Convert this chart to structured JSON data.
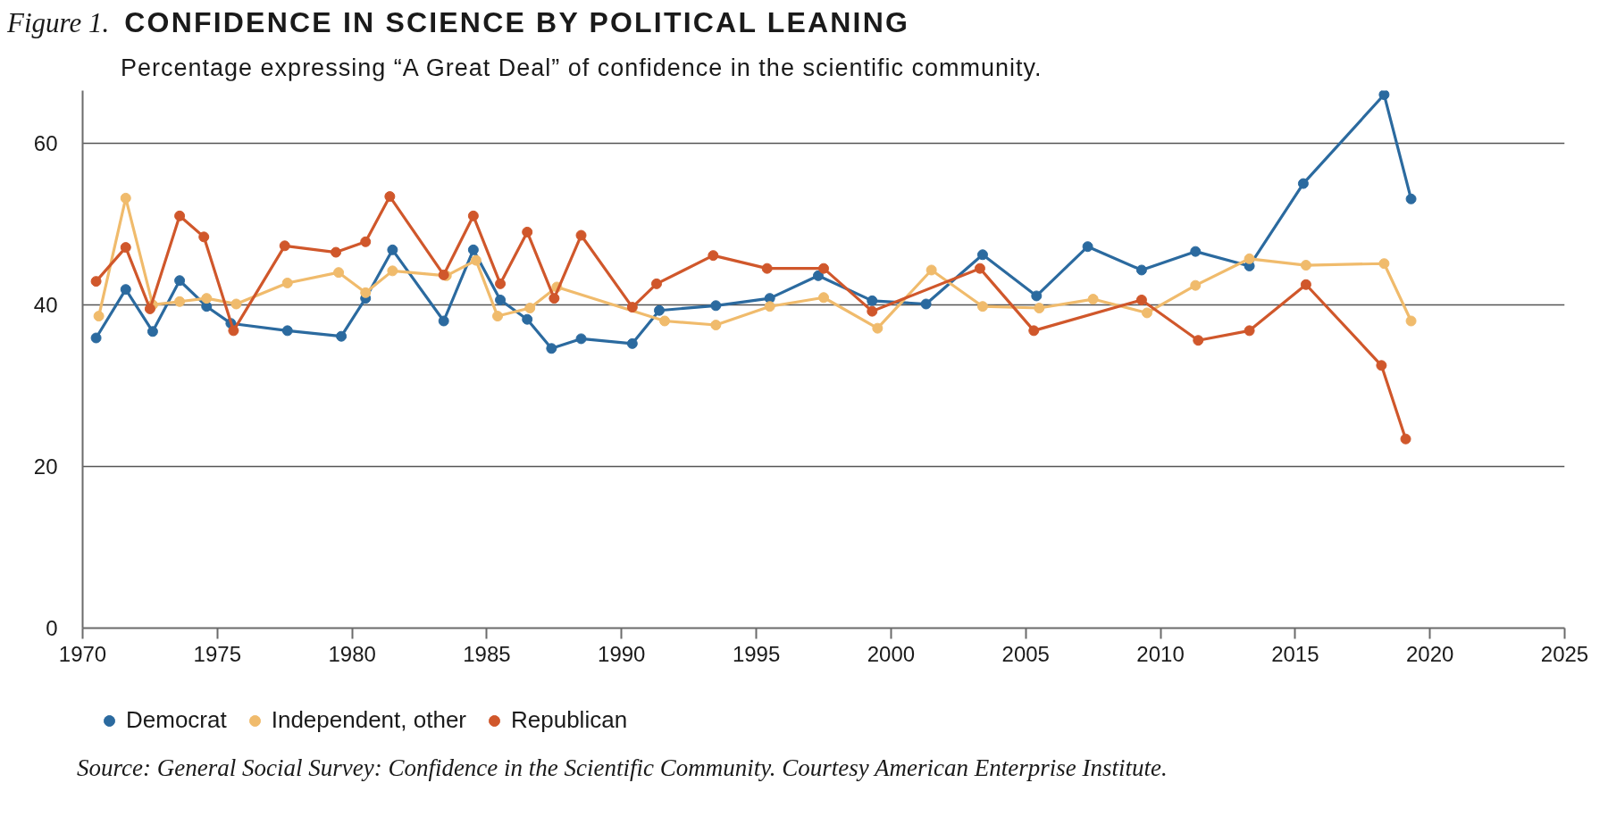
{
  "chart_data": {
    "type": "line",
    "title": "CONFIDENCE IN SCIENCE BY POLITICAL LEANING",
    "subtitle": "Percentage expressing “A Great Deal” of confidence in the scientific community.",
    "annotations": [
      "Figure 1.",
      "Source: General Social Survey: Confidence in the Scientific Community. Courtesy American Enterprise Institute."
    ],
    "xlim": [
      1970,
      2025
    ],
    "xticks": [
      1970,
      1975,
      1980,
      1985,
      1990,
      1995,
      2000,
      2005,
      2010,
      2015,
      2020,
      2025
    ],
    "ylim": [
      0,
      66.5
    ],
    "yticks": [
      0,
      20,
      40,
      60
    ],
    "grid": "y",
    "legend": "bottom",
    "marker": "circle",
    "series": [
      {
        "name": "Democrat",
        "color": "#2b6a9f",
        "x": [
          1970.5,
          1971.6,
          1972.6,
          1973.6,
          1974.6,
          1975.5,
          1977.6,
          1979.6,
          1980.5,
          1981.5,
          1983.4,
          1984.5,
          1985.5,
          1986.5,
          1987.4,
          1988.5,
          1990.4,
          1991.4,
          1993.5,
          1995.5,
          1997.3,
          1999.3,
          2001.3,
          2003.4,
          2005.4,
          2007.3,
          2009.3,
          2011.3,
          2013.3,
          2015.3,
          2018.3,
          2019.3
        ],
        "values": [
          35.9,
          41.9,
          36.7,
          43.0,
          39.8,
          37.7,
          36.8,
          36.1,
          40.8,
          46.8,
          38.0,
          46.8,
          40.6,
          38.2,
          34.6,
          35.8,
          35.2,
          39.3,
          39.9,
          40.8,
          43.6,
          40.5,
          40.1,
          46.2,
          41.1,
          47.2,
          44.3,
          46.6,
          44.8,
          55.0,
          66.0,
          53.1
        ]
      },
      {
        "name": "Independent, other",
        "color": "#f0bb6c",
        "x": [
          1970.6,
          1971.6,
          1972.6,
          1973.6,
          1974.6,
          1975.7,
          1977.6,
          1979.5,
          1980.5,
          1981.5,
          1983.5,
          1984.6,
          1985.4,
          1986.6,
          1987.6,
          1991.6,
          1993.5,
          1995.5,
          1997.5,
          1999.5,
          2001.5,
          2003.4,
          2005.5,
          2007.5,
          2009.5,
          2011.3,
          2013.3,
          2015.4,
          2018.3,
          2019.3
        ],
        "values": [
          38.6,
          53.2,
          40.0,
          40.4,
          40.8,
          40.1,
          42.7,
          44.0,
          41.5,
          44.2,
          43.6,
          45.5,
          38.6,
          39.6,
          42.2,
          38.0,
          37.5,
          39.8,
          40.9,
          37.1,
          44.3,
          39.8,
          39.6,
          40.7,
          39.0,
          42.4,
          45.7,
          44.9,
          45.1,
          38.0
        ]
      },
      {
        "name": "Republican",
        "color": "#d0572b",
        "x": [
          1970.5,
          1971.6,
          1972.5,
          1973.6,
          1974.5,
          1975.6,
          1977.5,
          1979.4,
          1980.5,
          1981.4,
          1983.4,
          1984.5,
          1985.5,
          1986.5,
          1987.5,
          1988.5,
          1990.4,
          1991.3,
          1993.4,
          1995.4,
          1997.5,
          1999.3,
          2003.3,
          2005.3,
          2009.3,
          2011.4,
          2013.3,
          2015.4,
          2018.2,
          2019.1
        ],
        "values": [
          42.9,
          47.1,
          39.5,
          51.0,
          48.4,
          36.8,
          47.3,
          46.5,
          47.8,
          53.4,
          43.7,
          51.0,
          42.6,
          49.0,
          40.8,
          48.6,
          39.7,
          42.6,
          46.1,
          44.5,
          44.5,
          39.2,
          44.5,
          36.8,
          40.6,
          35.6,
          36.8,
          42.5,
          32.5,
          23.4
        ]
      }
    ]
  }
}
